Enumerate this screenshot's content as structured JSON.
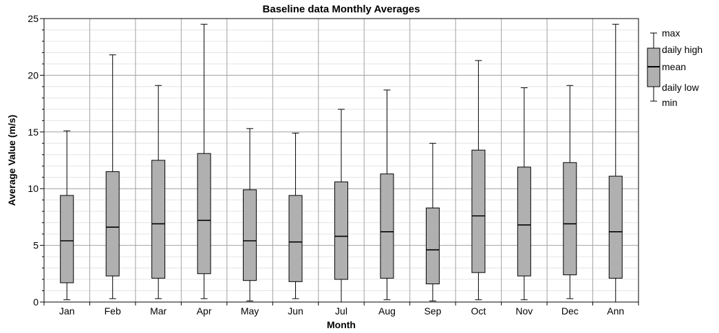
{
  "chart_data": {
    "type": "box",
    "title": "Baseline data Monthly Averages",
    "xlabel": "Month",
    "ylabel": "Average Value (m/s)",
    "ylim": [
      0,
      25
    ],
    "yticks": [
      0,
      5,
      10,
      15,
      20,
      25
    ],
    "grid": true,
    "legend_position": "right",
    "colors": {
      "box_fill": "#b0b0b0",
      "grid_major": "#a0a0a0",
      "grid_minor": "#e4e4e4"
    },
    "categories": [
      "Jan",
      "Feb",
      "Mar",
      "Apr",
      "May",
      "Jun",
      "Jul",
      "Aug",
      "Sep",
      "Oct",
      "Nov",
      "Dec",
      "Ann"
    ],
    "series": [
      {
        "min": 0.2,
        "daily_low": 1.7,
        "mean": 5.4,
        "daily_high": 9.4,
        "max": 15.1
      },
      {
        "min": 0.3,
        "daily_low": 2.3,
        "mean": 6.6,
        "daily_high": 11.5,
        "max": 21.8
      },
      {
        "min": 0.3,
        "daily_low": 2.1,
        "mean": 6.9,
        "daily_high": 12.5,
        "max": 19.1
      },
      {
        "min": 0.3,
        "daily_low": 2.5,
        "mean": 7.2,
        "daily_high": 13.1,
        "max": 24.5
      },
      {
        "min": 0.1,
        "daily_low": 1.9,
        "mean": 5.4,
        "daily_high": 9.9,
        "max": 15.3
      },
      {
        "min": 0.3,
        "daily_low": 1.8,
        "mean": 5.3,
        "daily_high": 9.4,
        "max": 14.9
      },
      {
        "min": 0.0,
        "daily_low": 2.0,
        "mean": 5.8,
        "daily_high": 10.6,
        "max": 17.0
      },
      {
        "min": 0.2,
        "daily_low": 2.1,
        "mean": 6.2,
        "daily_high": 11.3,
        "max": 18.7
      },
      {
        "min": 0.1,
        "daily_low": 1.6,
        "mean": 4.6,
        "daily_high": 8.3,
        "max": 14.0
      },
      {
        "min": 0.2,
        "daily_low": 2.6,
        "mean": 7.6,
        "daily_high": 13.4,
        "max": 21.3
      },
      {
        "min": 0.2,
        "daily_low": 2.3,
        "mean": 6.8,
        "daily_high": 11.9,
        "max": 18.9
      },
      {
        "min": 0.3,
        "daily_low": 2.4,
        "mean": 6.9,
        "daily_high": 12.3,
        "max": 19.1
      },
      {
        "min": 0.0,
        "daily_low": 2.1,
        "mean": 6.2,
        "daily_high": 11.1,
        "max": 24.5
      }
    ],
    "legend": {
      "max": "max",
      "daily_high": "daily high",
      "mean": "mean",
      "daily_low": "daily low",
      "min": "min"
    }
  }
}
